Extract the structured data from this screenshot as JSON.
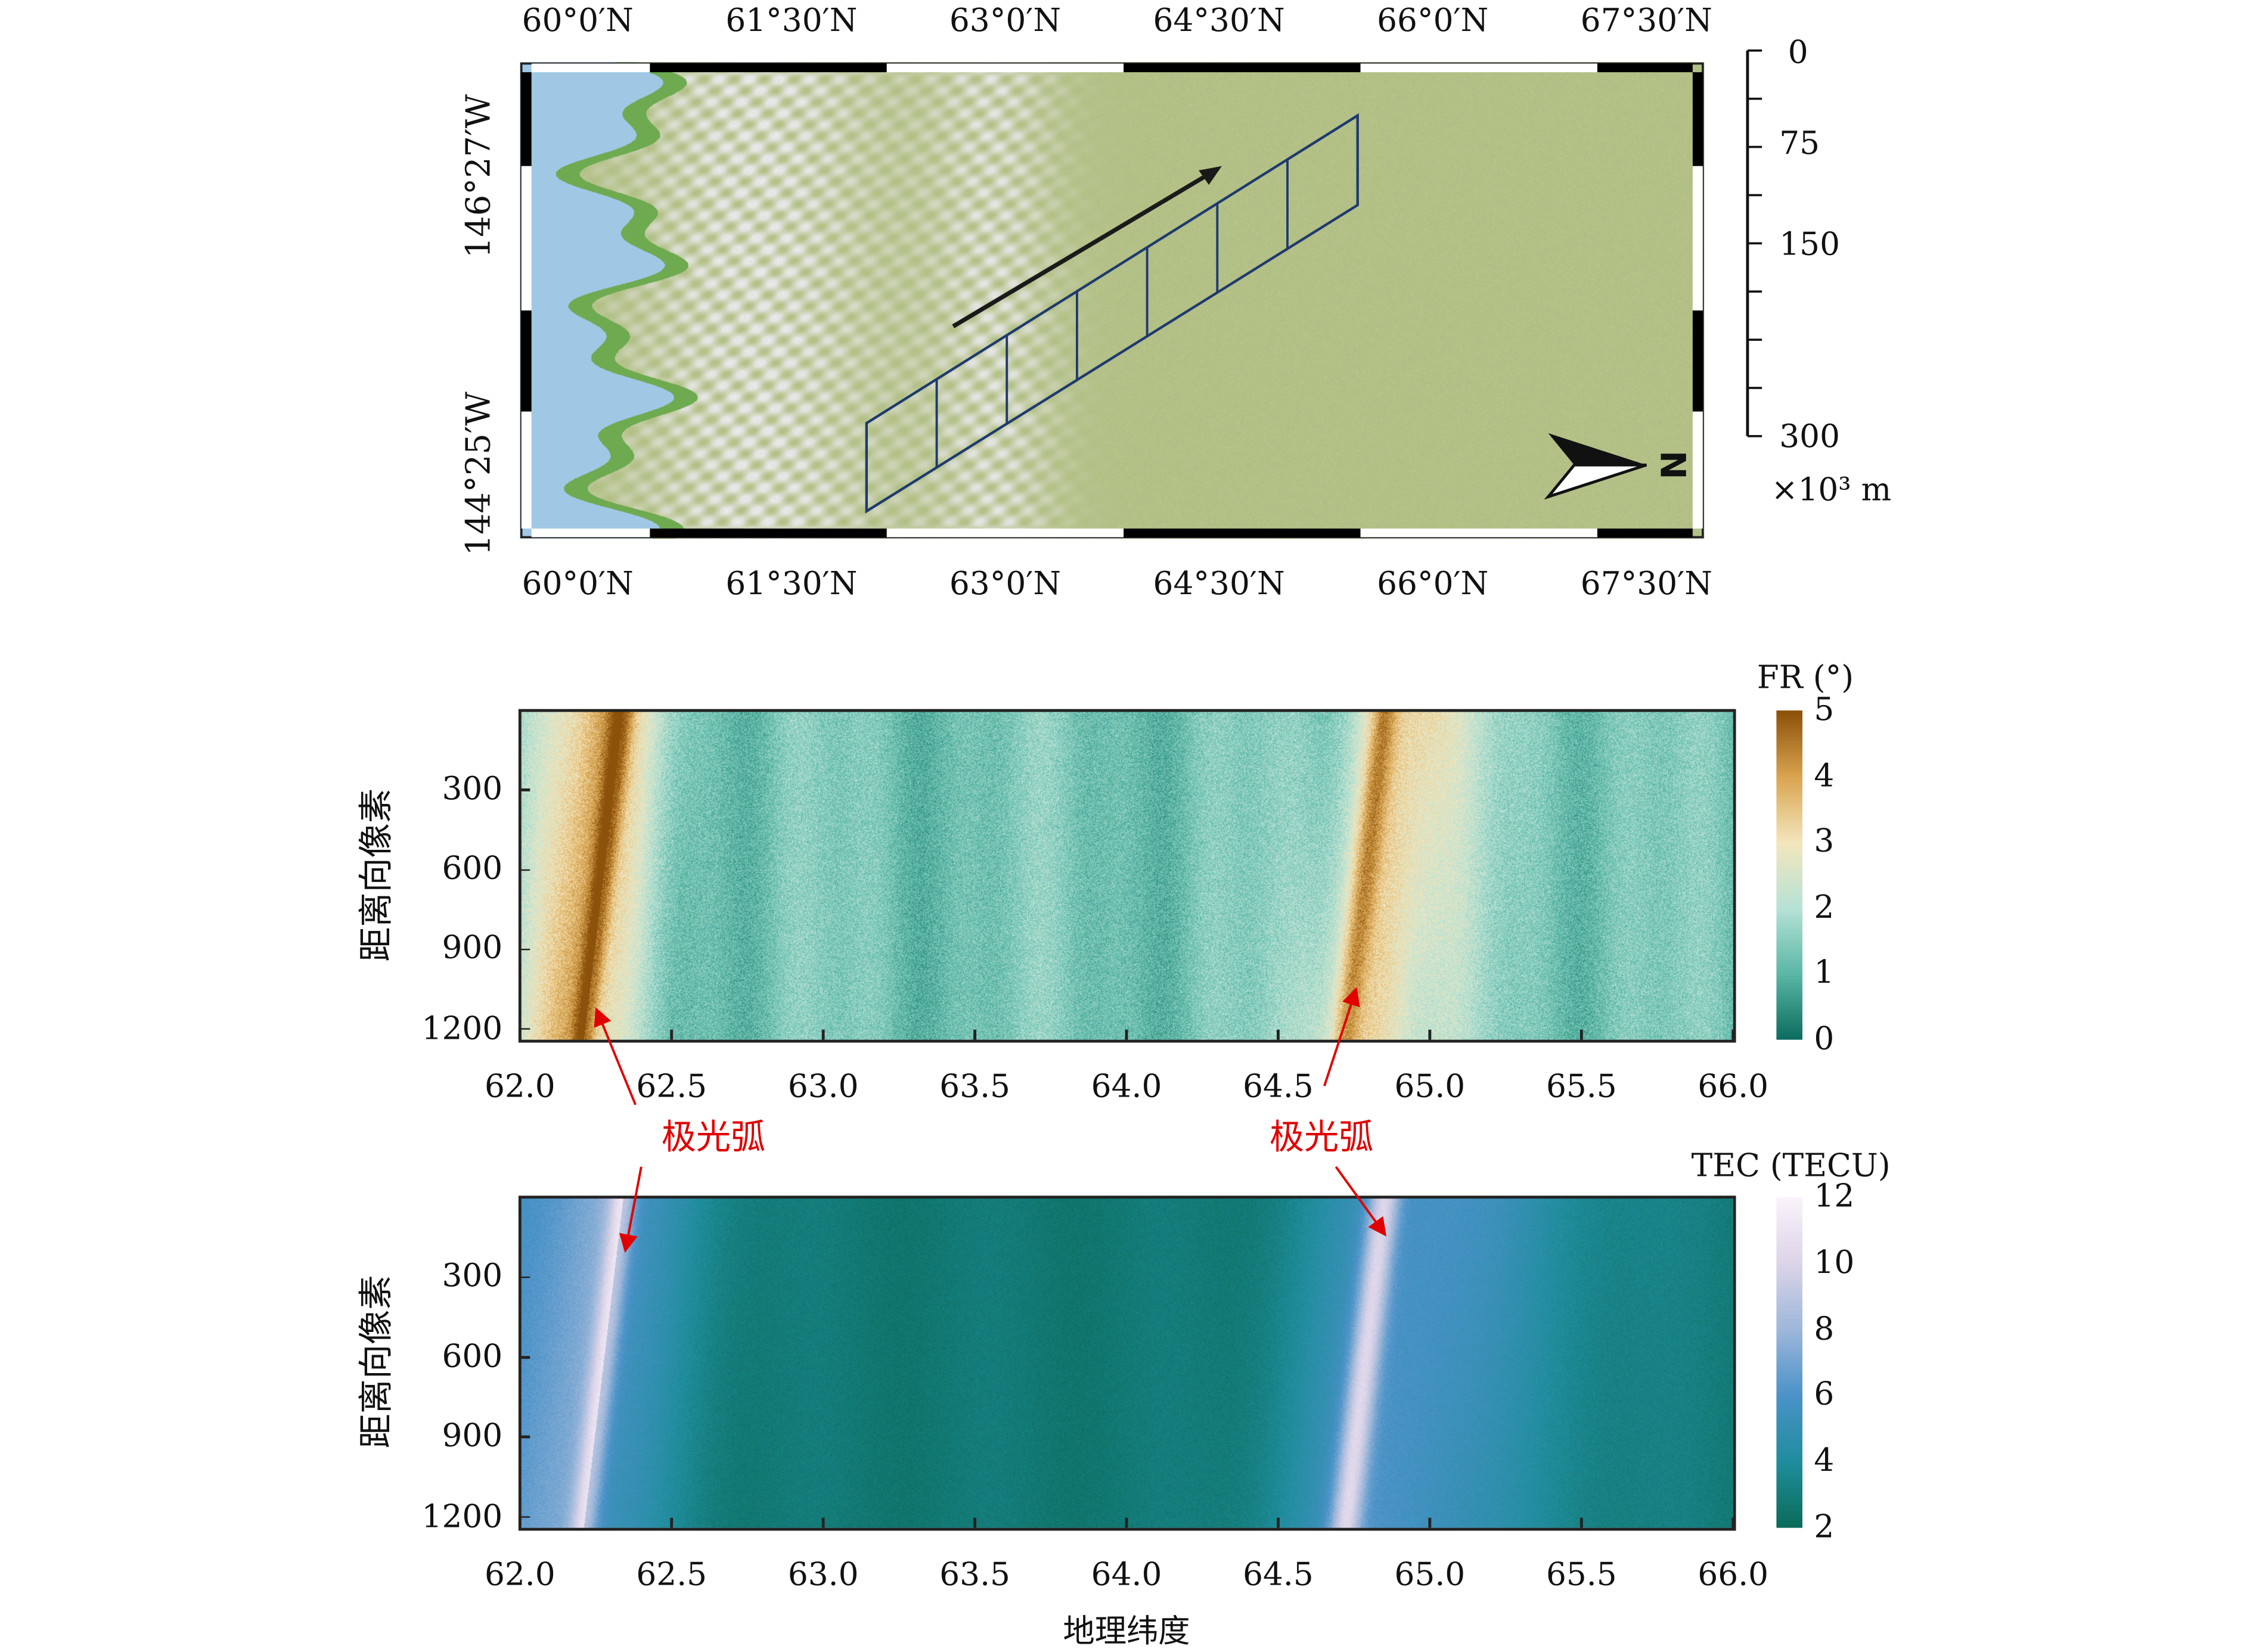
{
  "map": {
    "top_lat_labels": [
      "60°0′N",
      "61°30′N",
      "63°0′N",
      "64°30′N",
      "66°0′N",
      "67°30′N"
    ],
    "bottom_lat_labels": [
      "60°0′N",
      "61°30′N",
      "63°0′N",
      "64°30′N",
      "66°0′N",
      "67°30′N"
    ],
    "lon_labels": [
      "146°27′W",
      "144°25′W"
    ],
    "scale_bar": {
      "labels": [
        "0",
        "75",
        "150",
        "300"
      ],
      "unit": "×10³ m"
    },
    "north_label": "N",
    "swath_segments": 7,
    "colors": {
      "swath": "#1f3a6e",
      "water": "#9fc8e6",
      "land": "#b9c98a"
    }
  },
  "chart_data": [
    {
      "type": "heatmap",
      "title": "",
      "xlabel": "",
      "ylabel": "距离向像素",
      "xlim": [
        62.0,
        66.0
      ],
      "xticks": [
        "62.0",
        "62.5",
        "63.0",
        "63.5",
        "64.0",
        "64.5",
        "65.0",
        "65.5",
        "66.0"
      ],
      "ylim": [
        1240,
        0
      ],
      "yticks": [
        "300",
        "600",
        "900",
        "1200"
      ],
      "colorbar": {
        "label": "FR (°)",
        "range": [
          0,
          5
        ],
        "ticks": [
          "0",
          "1",
          "2",
          "3",
          "4",
          "5"
        ],
        "colors": [
          "#0b6b5d",
          "#5ab7a6",
          "#b6e2d6",
          "#f4e6bd",
          "#d9a550",
          "#8c510a"
        ]
      },
      "arcs": [
        {
          "lat_top": 62.34,
          "lat_bottom": 62.21,
          "peak": 4.6
        },
        {
          "lat_top": 64.85,
          "lat_bottom": 64.72,
          "peak": 4.2
        }
      ],
      "background": 1.3,
      "annotation": "极光弧"
    },
    {
      "type": "heatmap",
      "title": "",
      "xlabel": "地理纬度",
      "ylabel": "距离向像素",
      "xlim": [
        62.0,
        66.0
      ],
      "xticks": [
        "62.0",
        "62.5",
        "63.0",
        "63.5",
        "64.0",
        "64.5",
        "65.0",
        "65.5",
        "66.0"
      ],
      "ylim": [
        1240,
        0
      ],
      "yticks": [
        "300",
        "600",
        "900",
        "1200"
      ],
      "colorbar": {
        "label": "TEC (TECU)",
        "range": [
          2,
          12
        ],
        "ticks": [
          "2",
          "4",
          "6",
          "8",
          "10",
          "12"
        ],
        "colors": [
          "#0a6b58",
          "#1f8d9c",
          "#4a92c8",
          "#9db7da",
          "#dcd4e8",
          "#fbf3fa"
        ]
      },
      "arcs": [
        {
          "lat_top": 62.34,
          "lat_bottom": 62.21,
          "peak": 11
        },
        {
          "lat_top": 64.85,
          "lat_bottom": 64.72,
          "peak": 10
        }
      ],
      "background": 2.8,
      "annotation": "极光弧"
    }
  ],
  "annotations": [
    "极光弧",
    "极光弧"
  ]
}
